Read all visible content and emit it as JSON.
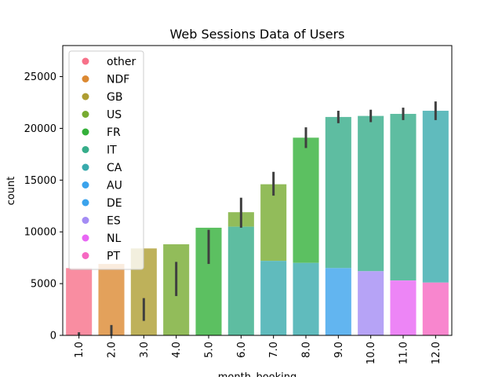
{
  "chart_data": {
    "type": "bar",
    "title": "Web Sessions Data of Users",
    "xlabel": "month_booking",
    "ylabel": "count",
    "ylim": [
      0,
      28000
    ],
    "yticks": [
      "0",
      "5000",
      "10000",
      "15000",
      "20000",
      "25000"
    ],
    "grid": false,
    "legend_position": "top-left",
    "categories": [
      "1.0",
      "2.0",
      "3.0",
      "4.0",
      "5.0",
      "6.0",
      "7.0",
      "8.0",
      "9.0",
      "10.0",
      "11.0",
      "12.0"
    ],
    "series": [
      {
        "name": "other",
        "color": "#f77189"
      },
      {
        "name": "NDF",
        "color": "#dc8932"
      },
      {
        "name": "GB",
        "color": "#ae9d31"
      },
      {
        "name": "US",
        "color": "#77ab31"
      },
      {
        "name": "FR",
        "color": "#33b039"
      },
      {
        "name": "IT",
        "color": "#36ad8a"
      },
      {
        "name": "CA",
        "color": "#38aaac"
      },
      {
        "name": "AU",
        "color": "#3ba3ec"
      },
      {
        "name": "DE",
        "color": "#3ba3ec"
      },
      {
        "name": "ES",
        "color": "#a48cf4"
      },
      {
        "name": "NL",
        "color": "#e866f4"
      },
      {
        "name": "PT",
        "color": "#f668c2"
      }
    ],
    "bars": [
      {
        "category": "1.0",
        "base_value": 6500,
        "top_value": 6500,
        "base_color": "#f77189",
        "top_color": "#f77189",
        "err_low": 0,
        "err_high": 300
      },
      {
        "category": "2.0",
        "base_value": 6900,
        "top_value": 6900,
        "base_color": "#dc8932",
        "top_color": "#dc8932",
        "err_low": 0,
        "err_high": 1000
      },
      {
        "category": "3.0",
        "base_value": 8400,
        "top_value": 8400,
        "base_color": "#ae9d31",
        "top_color": "#ae9d31",
        "err_low": 1400,
        "err_high": 3600
      },
      {
        "category": "4.0",
        "base_value": 8800,
        "top_value": 8800,
        "base_color": "#77ab31",
        "top_color": "#77ab31",
        "err_low": 3800,
        "err_high": 7100
      },
      {
        "category": "5.0",
        "base_value": 10400,
        "top_value": 10400,
        "base_color": "#33b039",
        "top_color": "#33b039",
        "err_low": 6900,
        "err_high": 10200
      },
      {
        "category": "6.0",
        "base_value": 10500,
        "top_value": 11900,
        "base_color": "#36ad8a",
        "top_color": "#77ab31",
        "err_low": 10400,
        "err_high": 13300
      },
      {
        "category": "7.0",
        "base_value": 7200,
        "top_value": 14600,
        "base_color": "#38aaac",
        "top_color": "#77ab31",
        "err_low": 13500,
        "err_high": 15800
      },
      {
        "category": "8.0",
        "base_value": 7000,
        "top_value": 19100,
        "base_color": "#38aaac",
        "top_color": "#33b039",
        "err_low": 18100,
        "err_high": 20100
      },
      {
        "category": "9.0",
        "base_value": 6500,
        "top_value": 21100,
        "base_color": "#3ba3ec",
        "top_color": "#36ad8a",
        "err_low": 20500,
        "err_high": 21700
      },
      {
        "category": "10.0",
        "base_value": 6200,
        "top_value": 21200,
        "base_color": "#a48cf4",
        "top_color": "#36ad8a",
        "err_low": 20600,
        "err_high": 21800
      },
      {
        "category": "11.0",
        "base_value": 5300,
        "top_value": 21400,
        "base_color": "#e866f4",
        "top_color": "#36ad8a",
        "err_low": 20800,
        "err_high": 22000
      },
      {
        "category": "12.0",
        "base_value": 5100,
        "top_value": 21700,
        "base_color": "#f668c2",
        "top_color": "#38aaac",
        "err_low": 20800,
        "err_high": 22600
      }
    ]
  }
}
